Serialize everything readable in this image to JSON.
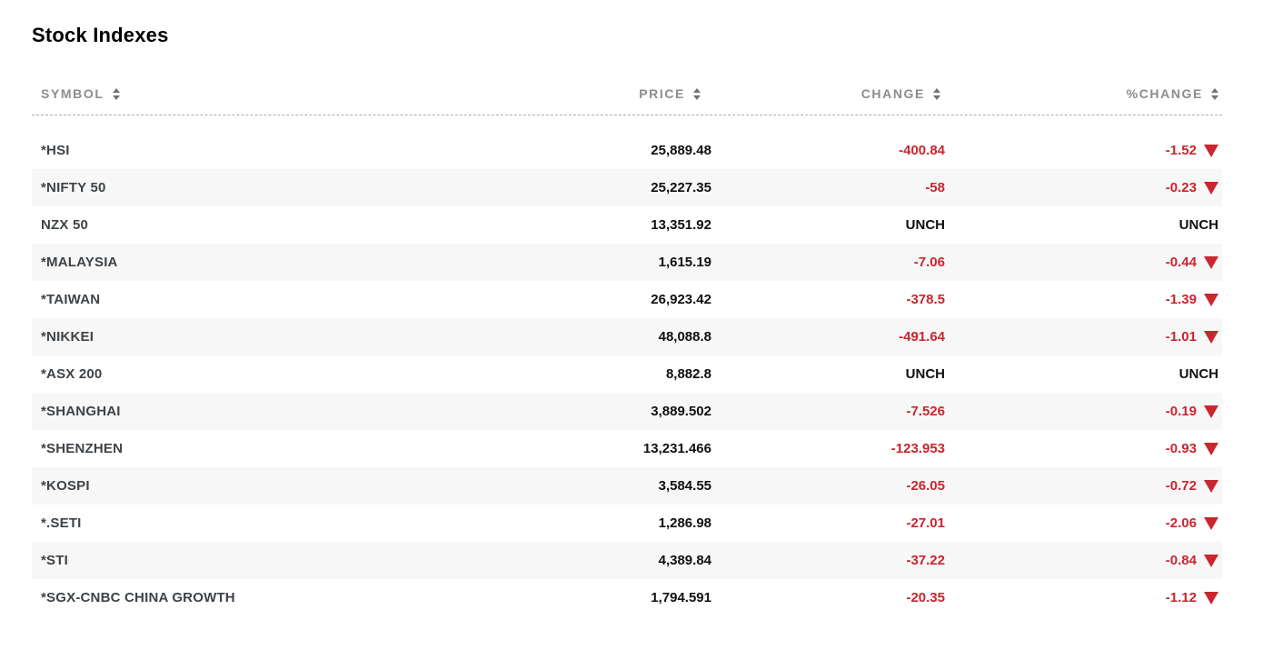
{
  "page": {
    "title": "Stock Indexes"
  },
  "colors": {
    "negative_red": "#c9262f",
    "symbol_text": "#3e4347",
    "price_text": "#0f1012",
    "header_text": "#8c8c8c",
    "row_stripe": "#f7f7f7"
  },
  "icons": {
    "sort": "sort-arrows-up-down",
    "down": "red-down-triangle"
  },
  "table": {
    "columns": [
      {
        "key": "symbol",
        "label": "SYMBOL"
      },
      {
        "key": "price",
        "label": "PRICE"
      },
      {
        "key": "change",
        "label": "CHANGE"
      },
      {
        "key": "pct_change",
        "label": "%CHANGE"
      }
    ],
    "rows": [
      {
        "symbol": "*HSI",
        "price": "25,889.48",
        "change": "-400.84",
        "pct_change": "-1.52",
        "direction": "down"
      },
      {
        "symbol": "*NIFTY 50",
        "price": "25,227.35",
        "change": "-58",
        "pct_change": "-0.23",
        "direction": "down"
      },
      {
        "symbol": "NZX 50",
        "price": "13,351.92",
        "change": "UNCH",
        "pct_change": "UNCH",
        "direction": "unch"
      },
      {
        "symbol": "*MALAYSIA",
        "price": "1,615.19",
        "change": "-7.06",
        "pct_change": "-0.44",
        "direction": "down"
      },
      {
        "symbol": "*TAIWAN",
        "price": "26,923.42",
        "change": "-378.5",
        "pct_change": "-1.39",
        "direction": "down"
      },
      {
        "symbol": "*NIKKEI",
        "price": "48,088.8",
        "change": "-491.64",
        "pct_change": "-1.01",
        "direction": "down"
      },
      {
        "symbol": "*ASX 200",
        "price": "8,882.8",
        "change": "UNCH",
        "pct_change": "UNCH",
        "direction": "unch"
      },
      {
        "symbol": "*SHANGHAI",
        "price": "3,889.502",
        "change": "-7.526",
        "pct_change": "-0.19",
        "direction": "down"
      },
      {
        "symbol": "*SHENZHEN",
        "price": "13,231.466",
        "change": "-123.953",
        "pct_change": "-0.93",
        "direction": "down"
      },
      {
        "symbol": "*KOSPI",
        "price": "3,584.55",
        "change": "-26.05",
        "pct_change": "-0.72",
        "direction": "down"
      },
      {
        "symbol": "*.SETI",
        "price": "1,286.98",
        "change": "-27.01",
        "pct_change": "-2.06",
        "direction": "down"
      },
      {
        "symbol": "*STI",
        "price": "4,389.84",
        "change": "-37.22",
        "pct_change": "-0.84",
        "direction": "down"
      },
      {
        "symbol": "*SGX-CNBC CHINA GROWTH",
        "price": "1,794.591",
        "change": "-20.35",
        "pct_change": "-1.12",
        "direction": "down"
      }
    ]
  }
}
